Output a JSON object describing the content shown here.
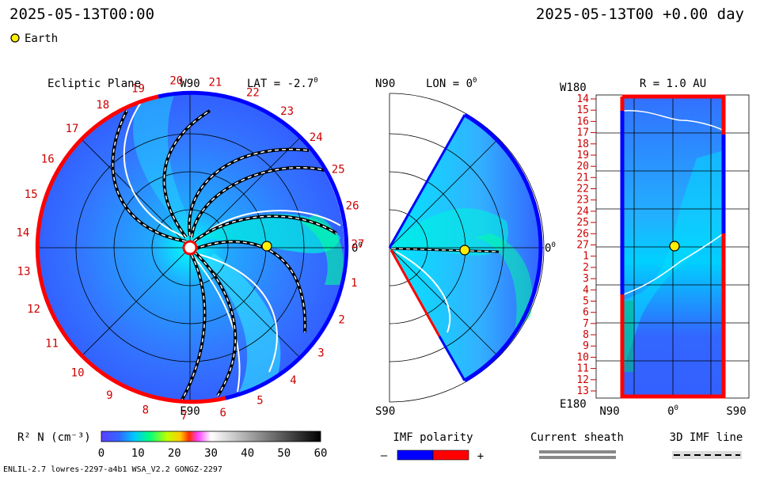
{
  "header": {
    "left_timestamp": "2025-05-13T00:00",
    "right_timestamp": "2025-05-13T00 +0.00 day"
  },
  "legend": {
    "earth_label": "Earth",
    "earth_color": "#ffee00"
  },
  "panels": {
    "ecliptic": {
      "title": "Ecliptic Plane",
      "lat_label": "LAT = -2.7",
      "top_label": "W90",
      "bottom_label": "E90",
      "right_label": "0",
      "sector_numbers": [
        "1",
        "2",
        "3",
        "4",
        "5",
        "6",
        "7",
        "8",
        "9",
        "10",
        "11",
        "12",
        "13",
        "14",
        "15",
        "16",
        "17",
        "18",
        "19",
        "20",
        "21",
        "22",
        "23",
        "24",
        "25",
        "26",
        "27"
      ]
    },
    "meridional": {
      "lon_label": "LON = 0",
      "top_label": "N90",
      "bottom_label": "S90",
      "right_label": "0"
    },
    "earth_shell": {
      "title": "R = 1.0 AU",
      "top_left_label": "W180",
      "bottom_left_label": "E180",
      "x_labels": [
        "N90",
        "0",
        "S90"
      ],
      "y_labels": [
        "14",
        "15",
        "16",
        "17",
        "18",
        "19",
        "20",
        "21",
        "22",
        "23",
        "24",
        "25",
        "26",
        "27",
        "1",
        "2",
        "3",
        "4",
        "5",
        "6",
        "7",
        "8",
        "9",
        "10",
        "11",
        "12",
        "13"
      ]
    }
  },
  "colorbar": {
    "label": "R² N (cm⁻³)",
    "ticks": [
      "0",
      "10",
      "20",
      "30",
      "40",
      "50",
      "60"
    ]
  },
  "imf_legend": {
    "title": "IMF polarity",
    "minus": "–",
    "plus": "+",
    "neg_color": "#0000ff",
    "pos_color": "#ff0000"
  },
  "sheath_legend": {
    "title": "Current sheath"
  },
  "imf_line_legend": {
    "title": "3D IMF line"
  },
  "footer": {
    "left": "ENLIL-2.7 lowres-2297-a4b1 WSA_V2.2 GONGZ-2297"
  },
  "chart_data": {
    "type": "heatmap",
    "quantity": "R² N (cm⁻³)",
    "colorbar_range": [
      0,
      60
    ],
    "earth": {
      "r_au": 1.0,
      "lat_deg": -2.7,
      "lon_deg": 0
    },
    "panels": [
      "Ecliptic Plane",
      "LON = 0",
      "R = 1.0 AU"
    ]
  }
}
